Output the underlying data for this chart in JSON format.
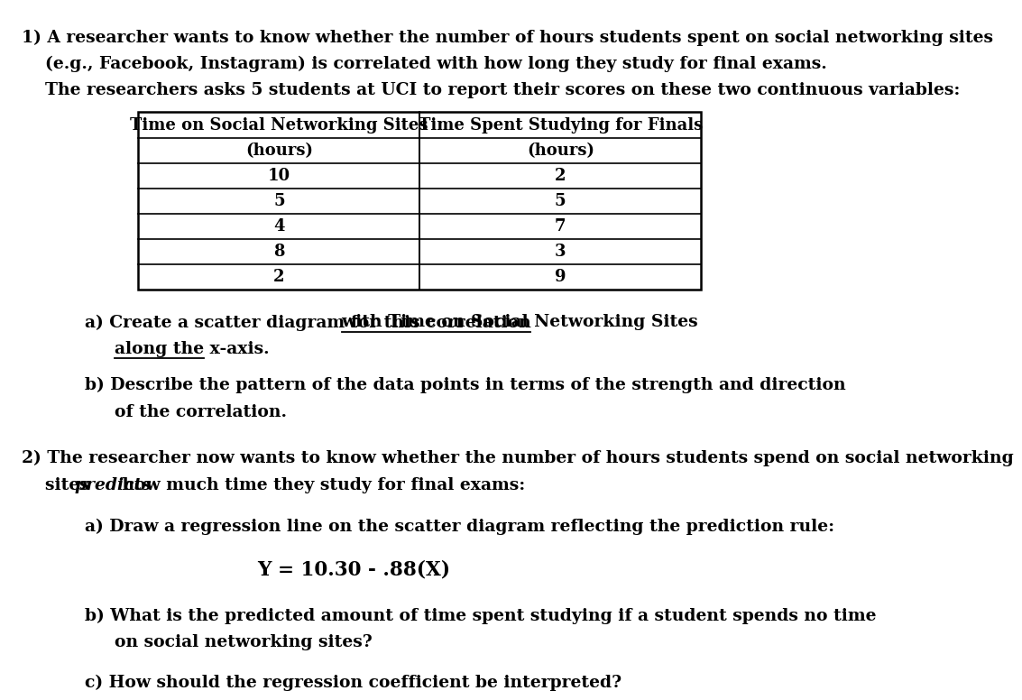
{
  "bg_color": "#ffffff",
  "font_family": "DejaVu Serif",
  "fs_main": 13.5,
  "fs_table": 13.0,
  "fs_formula": 15.5,
  "table_col1_header": [
    "Time on Social Networking Sites",
    "(hours)"
  ],
  "table_col2_header": [
    "Time Spent Studying for Finals",
    "(hours)"
  ],
  "table_col1_data": [
    10,
    5,
    4,
    8,
    2
  ],
  "table_col2_data": [
    2,
    5,
    7,
    3,
    9
  ],
  "line1": "1) A researcher wants to know whether the number of hours students spent on social networking sites",
  "line2": "    (e.g., Facebook, Instagram) is correlated with how long they study for final exams.",
  "line3": "    The researchers asks 5 students at UCI to report their scores on these two continuous variables:",
  "part_a_prefix": "a) Create a scatter diagram for this correlation ",
  "part_a_ul1": "with Time on Social Networking Sites",
  "part_a_ul2": "along the x-axis.",
  "part_b1": "b) Describe the pattern of the data points in terms of the strength and direction",
  "part_b2": "    of the correlation.",
  "sec2_line1": "2) The researcher now wants to know whether the number of hours students spend on social networking",
  "sec2_line2_pre": "    sites ",
  "sec2_line2_italic": "predicts",
  "sec2_line2_post": " how much time they study for final exams:",
  "sec2a": "a) Draw a regression line on the scatter diagram reflecting the prediction rule:",
  "sec2_formula": "Y = 10.30 - .88(X)",
  "sec2b1": "b) What is the predicted amount of time spent studying if a student spends no time",
  "sec2b2": "    on social networking sites?",
  "sec2c": "c) How should the regression coefficient be interpreted?"
}
